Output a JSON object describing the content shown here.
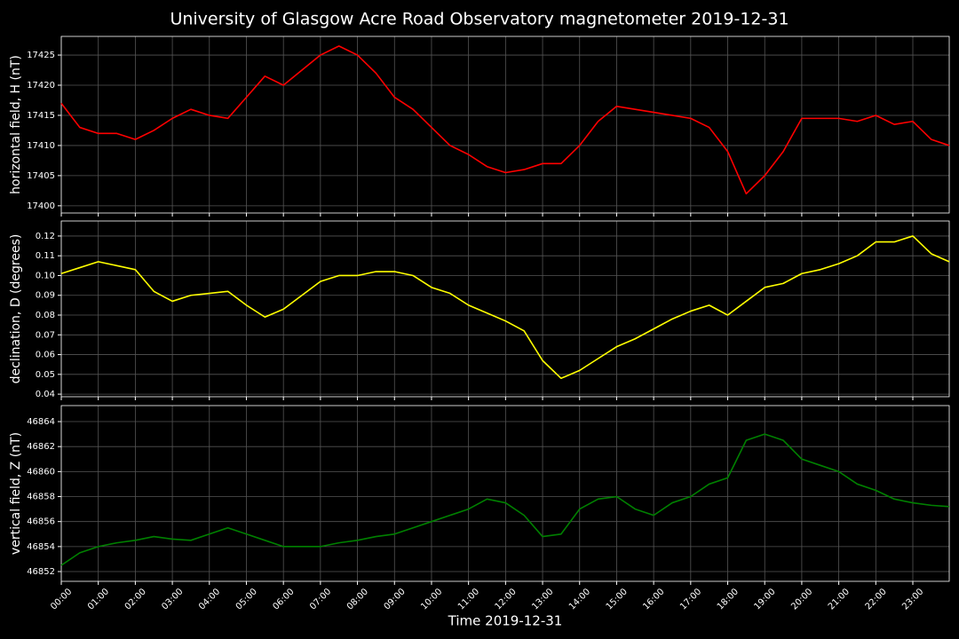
{
  "title": "University of Glasgow Acre Road Observatory magnetometer 2019-12-31",
  "chart_data": [
    {
      "type": "line",
      "ylabel": "horizontal field, H (nT)",
      "x": [
        "00:00",
        "00:30",
        "01:00",
        "01:30",
        "02:00",
        "02:30",
        "03:00",
        "03:30",
        "04:00",
        "04:30",
        "05:00",
        "05:30",
        "06:00",
        "06:30",
        "07:00",
        "07:30",
        "08:00",
        "08:30",
        "09:00",
        "09:30",
        "10:00",
        "10:30",
        "11:00",
        "11:30",
        "12:00",
        "12:30",
        "13:00",
        "13:30",
        "14:00",
        "14:30",
        "15:00",
        "15:30",
        "16:00",
        "16:30",
        "17:00",
        "17:30",
        "18:00",
        "18:30",
        "19:00",
        "19:30",
        "20:00",
        "20:30",
        "21:00",
        "21:30",
        "22:00",
        "22:30",
        "23:00",
        "23:30",
        "23:59"
      ],
      "series": [
        {
          "color": "#ff0000",
          "values": [
            17417,
            17413,
            17412,
            17412,
            17411,
            17412.5,
            17414.5,
            17416,
            17415,
            17414.5,
            17418,
            17421.5,
            17420,
            17422.5,
            17425,
            17426.5,
            17425,
            17422,
            17418,
            17416,
            17413,
            17410,
            17408.5,
            17406.5,
            17405.5,
            17406,
            17407,
            17407,
            17410,
            17414,
            17416.5,
            17416,
            17415.5,
            17415,
            17414.5,
            17413,
            17409,
            17402,
            17405,
            17409,
            17414.5,
            17414.5,
            17414.5,
            17414,
            17415,
            17413.5,
            17414,
            17411,
            17410
          ]
        }
      ],
      "xlim": [
        "00:00",
        "23:59"
      ],
      "ylim": [
        17398.8,
        17428.1
      ],
      "yticks": [
        17400,
        17405,
        17410,
        17415,
        17420,
        17425
      ],
      "grid": true
    },
    {
      "type": "line",
      "ylabel": "declination, D (degrees)",
      "x": [
        "00:00",
        "00:30",
        "01:00",
        "01:30",
        "02:00",
        "02:30",
        "03:00",
        "03:30",
        "04:00",
        "04:30",
        "05:00",
        "05:30",
        "06:00",
        "06:30",
        "07:00",
        "07:30",
        "08:00",
        "08:30",
        "09:00",
        "09:30",
        "10:00",
        "10:30",
        "11:00",
        "11:30",
        "12:00",
        "12:30",
        "13:00",
        "13:30",
        "14:00",
        "14:30",
        "15:00",
        "15:30",
        "16:00",
        "16:30",
        "17:00",
        "17:30",
        "18:00",
        "18:30",
        "19:00",
        "19:30",
        "20:00",
        "20:30",
        "21:00",
        "21:30",
        "22:00",
        "22:30",
        "23:00",
        "23:30",
        "23:59"
      ],
      "series": [
        {
          "color": "#ffff00",
          "values": [
            0.101,
            0.104,
            0.107,
            0.105,
            0.103,
            0.092,
            0.087,
            0.09,
            0.091,
            0.092,
            0.085,
            0.079,
            0.083,
            0.09,
            0.097,
            0.1,
            0.1,
            0.102,
            0.102,
            0.1,
            0.094,
            0.091,
            0.085,
            0.081,
            0.077,
            0.072,
            0.057,
            0.048,
            0.052,
            0.058,
            0.064,
            0.068,
            0.073,
            0.078,
            0.082,
            0.085,
            0.08,
            0.087,
            0.094,
            0.096,
            0.101,
            0.103,
            0.106,
            0.11,
            0.117,
            0.117,
            0.12,
            0.111,
            0.107
          ]
        }
      ],
      "xlim": [
        "00:00",
        "23:59"
      ],
      "ylim": [
        0.0387,
        0.1276
      ],
      "yticks": [
        0.04,
        0.05,
        0.06,
        0.07,
        0.08,
        0.09,
        {
          "value": 0.1,
          "label": "0.10"
        },
        0.11,
        0.12
      ],
      "grid": true
    },
    {
      "type": "line",
      "ylabel": "vertical field, Z (nT)",
      "xlabel": "Time 2019-12-31",
      "x": [
        "00:00",
        "00:30",
        "01:00",
        "01:30",
        "02:00",
        "02:30",
        "03:00",
        "03:30",
        "04:00",
        "04:30",
        "05:00",
        "05:30",
        "06:00",
        "06:30",
        "07:00",
        "07:30",
        "08:00",
        "08:30",
        "09:00",
        "09:30",
        "10:00",
        "10:30",
        "11:00",
        "11:30",
        "12:00",
        "12:30",
        "13:00",
        "13:30",
        "14:00",
        "14:30",
        "15:00",
        "15:30",
        "16:00",
        "16:30",
        "17:00",
        "17:30",
        "18:00",
        "18:30",
        "19:00",
        "19:30",
        "20:00",
        "20:30",
        "21:00",
        "21:30",
        "22:00",
        "22:30",
        "23:00",
        "23:30",
        "23:59"
      ],
      "series": [
        {
          "color": "#008000",
          "values": [
            46852.5,
            46853.5,
            46854,
            46854.3,
            46854.5,
            46854.8,
            46854.6,
            46854.5,
            46855,
            46855.5,
            46855,
            46854.5,
            46854,
            46854,
            46854,
            46854.3,
            46854.5,
            46854.8,
            46855,
            46855.5,
            46856,
            46856.5,
            46857,
            46857.8,
            46857.5,
            46856.5,
            46854.8,
            46855,
            46857,
            46857.8,
            46858,
            46857,
            46856.5,
            46857.5,
            46858,
            46859,
            46859.5,
            46862.5,
            46863,
            46862.5,
            46861,
            46860.5,
            46860,
            46859,
            46858.5,
            46857.8,
            46857.5,
            46857.3,
            46857.2
          ]
        }
      ],
      "xlim": [
        "00:00",
        "23:59"
      ],
      "ylim": [
        46851.22,
        46865.28
      ],
      "yticks": [
        46852,
        46854,
        46856,
        46858,
        46860,
        46862,
        46864
      ],
      "xticks": [
        "00:00",
        "01:00",
        "02:00",
        "03:00",
        "04:00",
        "05:00",
        "06:00",
        "07:00",
        "08:00",
        "09:00",
        "10:00",
        "11:00",
        "12:00",
        "13:00",
        "14:00",
        "15:00",
        "16:00",
        "17:00",
        "18:00",
        "19:00",
        "20:00",
        "21:00",
        "22:00",
        "23:00"
      ],
      "grid": true
    }
  ]
}
